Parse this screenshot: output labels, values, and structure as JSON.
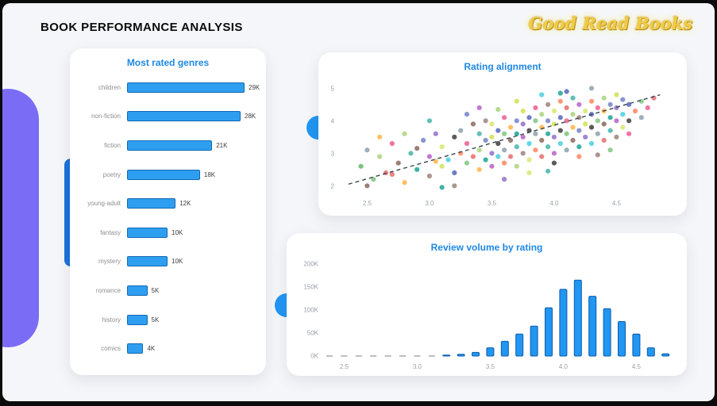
{
  "header": {
    "title": "BOOK PERFORMANCE ANALYSIS",
    "brand": "Good Read Books"
  },
  "colors": {
    "accent_blue": "#2196f3",
    "bar_fill": "#2e9ff0",
    "bar_border": "#1268b3",
    "title_blue": "#1e88e5",
    "purple": "#7b6cf6",
    "trend": "#37474f",
    "tick_text": "#9aa0a6"
  },
  "chart_data": [
    {
      "type": "bar",
      "orientation": "horizontal",
      "title": "Most rated genres",
      "categories": [
        "children",
        "non-fiction",
        "fiction",
        "poetry",
        "young-adult",
        "fantasy",
        "mystery",
        "romance",
        "history",
        "comics"
      ],
      "values": [
        29,
        28,
        21,
        18,
        12,
        10,
        10,
        5,
        5,
        4
      ],
      "value_labels": [
        "29K",
        "28K",
        "21K",
        "18K",
        "12K",
        "10K",
        "10K",
        "5K",
        "5K",
        "4K"
      ],
      "xlim": [
        0,
        29
      ]
    },
    {
      "type": "scatter",
      "title": "Rating alignment",
      "xlim": [
        2.3,
        4.95
      ],
      "ylim": [
        1.8,
        5.3
      ],
      "xticks": [
        2.5,
        3.0,
        3.5,
        4.0,
        4.5
      ],
      "xtick_labels": [
        "2.5",
        "3.0",
        "3.5",
        "4.0",
        "4.5"
      ],
      "yticks": [
        2,
        3,
        4,
        5
      ],
      "ytick_labels": [
        "2",
        "3",
        "4",
        "5"
      ],
      "trendline": {
        "x": [
          2.35,
          4.85
        ],
        "y": [
          2.05,
          4.8
        ]
      },
      "palette": [
        "#e57373",
        "#9575cd",
        "#4db6ac",
        "#81c784",
        "#dce775",
        "#ffb74d",
        "#a1887f",
        "#90a4ae",
        "#f06292",
        "#7986cb",
        "#4dd0e1",
        "#aed581",
        "#ff8a65",
        "#ba68c8",
        "#66bb6a",
        "#444444",
        "#8d6e63",
        "#d4e157",
        "#26a69a",
        "#5c6bc0"
      ],
      "points": [
        [
          2.45,
          2.6,
          14
        ],
        [
          2.5,
          3.1,
          7
        ],
        [
          2.55,
          2.2,
          3
        ],
        [
          2.6,
          2.9,
          11
        ],
        [
          2.65,
          2.4,
          0
        ],
        [
          2.7,
          3.3,
          8
        ],
        [
          2.75,
          2.7,
          16
        ],
        [
          2.8,
          2.1,
          5
        ],
        [
          2.85,
          3.0,
          2
        ],
        [
          2.9,
          2.5,
          18
        ],
        [
          2.95,
          3.4,
          9
        ],
        [
          3.0,
          2.3,
          6
        ],
        [
          3.0,
          2.9,
          13
        ],
        [
          3.05,
          3.6,
          1
        ],
        [
          3.1,
          2.6,
          17
        ],
        [
          3.1,
          3.2,
          4
        ],
        [
          3.15,
          2.8,
          10
        ],
        [
          3.2,
          3.5,
          15
        ],
        [
          3.2,
          2.4,
          19
        ],
        [
          3.25,
          3.0,
          12
        ],
        [
          3.25,
          3.7,
          7
        ],
        [
          3.3,
          2.7,
          3
        ],
        [
          3.3,
          3.3,
          8
        ],
        [
          3.35,
          2.9,
          0
        ],
        [
          3.35,
          3.9,
          16
        ],
        [
          3.4,
          2.5,
          5
        ],
        [
          3.4,
          3.1,
          11
        ],
        [
          3.4,
          3.6,
          2
        ],
        [
          3.45,
          2.8,
          18
        ],
        [
          3.45,
          3.4,
          9
        ],
        [
          3.45,
          4.0,
          6
        ],
        [
          3.5,
          2.6,
          13
        ],
        [
          3.5,
          3.0,
          1
        ],
        [
          3.5,
          3.5,
          17
        ],
        [
          3.5,
          3.9,
          4
        ],
        [
          3.55,
          2.9,
          10
        ],
        [
          3.55,
          3.3,
          15
        ],
        [
          3.55,
          3.7,
          19
        ],
        [
          3.6,
          2.7,
          12
        ],
        [
          3.6,
          3.1,
          7
        ],
        [
          3.6,
          3.6,
          3
        ],
        [
          3.6,
          4.1,
          8
        ],
        [
          3.65,
          2.9,
          0
        ],
        [
          3.65,
          3.4,
          16
        ],
        [
          3.65,
          3.8,
          5
        ],
        [
          3.7,
          2.6,
          11
        ],
        [
          3.7,
          3.2,
          2
        ],
        [
          3.7,
          3.6,
          18
        ],
        [
          3.7,
          4.0,
          9
        ],
        [
          3.75,
          3.0,
          6
        ],
        [
          3.75,
          3.5,
          13
        ],
        [
          3.75,
          3.9,
          1
        ],
        [
          3.75,
          4.3,
          17
        ],
        [
          3.8,
          2.8,
          4
        ],
        [
          3.8,
          3.3,
          10
        ],
        [
          3.8,
          3.7,
          15
        ],
        [
          3.8,
          4.1,
          19
        ],
        [
          3.85,
          3.1,
          12
        ],
        [
          3.85,
          3.6,
          7
        ],
        [
          3.85,
          4.0,
          3
        ],
        [
          3.85,
          4.4,
          8
        ],
        [
          3.9,
          2.9,
          0
        ],
        [
          3.9,
          3.4,
          16
        ],
        [
          3.9,
          3.8,
          5
        ],
        [
          3.9,
          4.2,
          11
        ],
        [
          3.95,
          3.2,
          2
        ],
        [
          3.95,
          3.6,
          18
        ],
        [
          3.95,
          4.0,
          9
        ],
        [
          3.95,
          4.5,
          6
        ],
        [
          4.0,
          3.0,
          13
        ],
        [
          4.0,
          3.5,
          1
        ],
        [
          4.0,
          3.9,
          17
        ],
        [
          4.0,
          4.3,
          4
        ],
        [
          4.05,
          3.3,
          10
        ],
        [
          4.05,
          3.7,
          15
        ],
        [
          4.05,
          4.1,
          19
        ],
        [
          4.05,
          4.6,
          12
        ],
        [
          4.1,
          3.1,
          7
        ],
        [
          4.1,
          3.6,
          3
        ],
        [
          4.1,
          4.0,
          8
        ],
        [
          4.1,
          4.4,
          0
        ],
        [
          4.15,
          3.4,
          16
        ],
        [
          4.15,
          3.8,
          5
        ],
        [
          4.15,
          4.2,
          11
        ],
        [
          4.15,
          4.7,
          2
        ],
        [
          4.2,
          3.2,
          18
        ],
        [
          4.2,
          3.7,
          9
        ],
        [
          4.2,
          4.1,
          6
        ],
        [
          4.2,
          4.5,
          13
        ],
        [
          4.25,
          3.5,
          1
        ],
        [
          4.25,
          3.9,
          17
        ],
        [
          4.25,
          4.3,
          4
        ],
        [
          4.3,
          3.3,
          10
        ],
        [
          4.3,
          3.8,
          15
        ],
        [
          4.3,
          4.2,
          19
        ],
        [
          4.3,
          4.6,
          12
        ],
        [
          4.35,
          3.6,
          7
        ],
        [
          4.35,
          4.0,
          3
        ],
        [
          4.35,
          4.4,
          8
        ],
        [
          4.4,
          3.4,
          0
        ],
        [
          4.4,
          3.9,
          16
        ],
        [
          4.4,
          4.3,
          5
        ],
        [
          4.4,
          4.7,
          11
        ],
        [
          4.45,
          3.7,
          2
        ],
        [
          4.45,
          4.1,
          18
        ],
        [
          4.45,
          4.5,
          9
        ],
        [
          4.5,
          3.5,
          6
        ],
        [
          4.5,
          4.0,
          13
        ],
        [
          4.5,
          4.4,
          1
        ],
        [
          4.5,
          4.8,
          17
        ],
        [
          4.55,
          3.8,
          4
        ],
        [
          4.55,
          4.2,
          10
        ],
        [
          4.6,
          4.0,
          15
        ],
        [
          4.6,
          4.5,
          19
        ],
        [
          4.65,
          4.3,
          12
        ],
        [
          4.7,
          4.1,
          7
        ],
        [
          4.7,
          4.6,
          3
        ],
        [
          4.75,
          4.4,
          8
        ],
        [
          4.8,
          4.7,
          0
        ],
        [
          2.5,
          2.0,
          16
        ],
        [
          2.6,
          3.5,
          5
        ],
        [
          2.8,
          3.6,
          11
        ],
        [
          3.0,
          4.0,
          2
        ],
        [
          3.1,
          1.95,
          18
        ],
        [
          3.3,
          4.2,
          9
        ],
        [
          3.2,
          2.0,
          6
        ],
        [
          3.4,
          4.4,
          13
        ],
        [
          3.6,
          2.2,
          1
        ],
        [
          3.7,
          4.6,
          17
        ],
        [
          3.8,
          2.4,
          4
        ],
        [
          3.9,
          4.8,
          10
        ],
        [
          4.0,
          2.7,
          15
        ],
        [
          4.1,
          4.9,
          19
        ],
        [
          4.2,
          2.9,
          12
        ],
        [
          4.3,
          5.0,
          7
        ],
        [
          4.45,
          3.1,
          3
        ],
        [
          4.6,
          3.6,
          8
        ],
        [
          2.7,
          2.35,
          0
        ],
        [
          2.9,
          3.15,
          16
        ],
        [
          3.05,
          2.75,
          5
        ],
        [
          3.55,
          4.35,
          11
        ],
        [
          3.95,
          2.45,
          2
        ],
        [
          4.05,
          4.85,
          18
        ],
        [
          4.55,
          4.65,
          9
        ],
        [
          4.35,
          2.95,
          6
        ]
      ]
    },
    {
      "type": "bar",
      "title": "Review volume by rating",
      "x_start": 2.4,
      "x_step": 0.1,
      "values": [
        0,
        0,
        0,
        0,
        0,
        0,
        0,
        0,
        2,
        4,
        8,
        18,
        32,
        48,
        65,
        105,
        145,
        165,
        130,
        103,
        75,
        48,
        18,
        5
      ],
      "ylim": [
        0,
        200
      ],
      "yticks": [
        0,
        50,
        100,
        150,
        200
      ],
      "ytick_labels": [
        "0K",
        "50K",
        "100K",
        "150K",
        "200K"
      ],
      "xticks": [
        2.5,
        3.0,
        3.5,
        4.0,
        4.5
      ],
      "xtick_labels": [
        "2.5",
        "3.0",
        "3.5",
        "4.0",
        "4.5"
      ]
    }
  ]
}
